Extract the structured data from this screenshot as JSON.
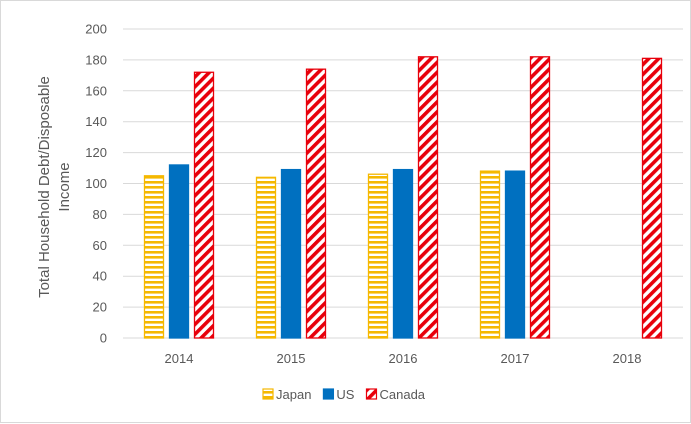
{
  "chart_data": {
    "type": "bar",
    "title": "",
    "xlabel": "",
    "ylabel_lines": [
      "Total Household Debt/Disposable",
      "Income"
    ],
    "ylim": [
      0,
      200
    ],
    "yticks": [
      0,
      20,
      40,
      60,
      80,
      100,
      120,
      140,
      160,
      180,
      200
    ],
    "grid": true,
    "legend_position": "bottom",
    "categories": [
      "2014",
      "2015",
      "2016",
      "2017",
      "2018"
    ],
    "series": [
      {
        "name": "Japan",
        "values": [
          105,
          104,
          106,
          108,
          null
        ],
        "color": "#f5b800",
        "pattern": "horizontal-stripes"
      },
      {
        "name": "US",
        "values": [
          112,
          109,
          109,
          108,
          null
        ],
        "color": "#0070c0",
        "pattern": "solid"
      },
      {
        "name": "Canada",
        "values": [
          172,
          174,
          182,
          182,
          181
        ],
        "color": "#e8000b",
        "pattern": "diagonal-stripes"
      }
    ]
  }
}
